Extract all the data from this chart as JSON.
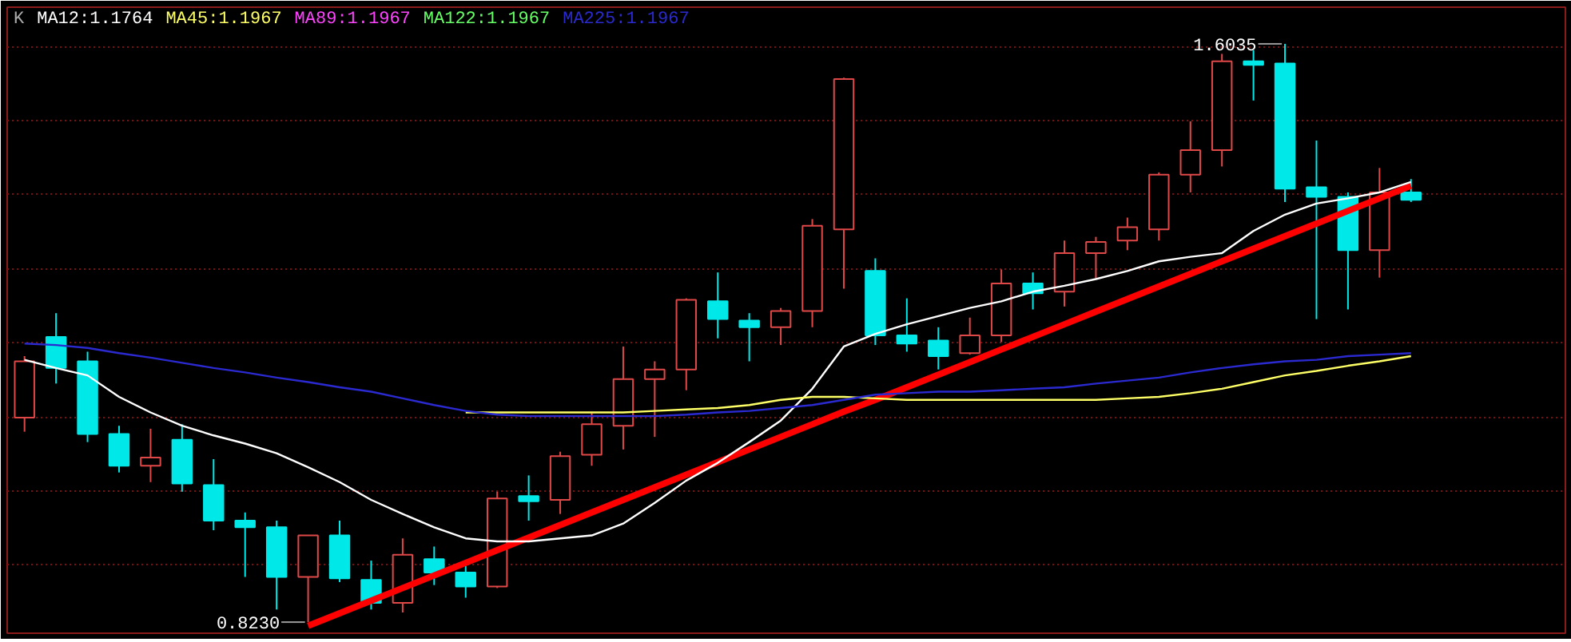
{
  "chart_data": {
    "type": "candlestick",
    "categories": [
      null,
      null,
      null,
      null,
      null,
      null,
      null,
      null,
      null,
      null,
      null,
      null,
      null,
      null,
      null,
      null,
      null,
      null,
      null,
      null,
      null,
      null,
      null,
      null,
      null,
      null,
      null,
      null,
      null,
      null,
      null,
      null,
      null,
      null,
      null,
      null,
      null,
      null,
      null,
      null,
      null,
      null,
      null,
      null,
      null
    ],
    "ohlc": [
      [
        1.099,
        1.182,
        1.08,
        1.175
      ],
      [
        1.208,
        1.24,
        1.145,
        1.166
      ],
      [
        1.175,
        1.188,
        1.066,
        1.077
      ],
      [
        1.077,
        1.088,
        1.025,
        1.034
      ],
      [
        1.034,
        1.084,
        1.012,
        1.045
      ],
      [
        1.069,
        1.09,
        0.999,
        1.01
      ],
      [
        1.008,
        1.043,
        0.947,
        0.96
      ],
      [
        0.96,
        0.971,
        0.884,
        0.951
      ],
      [
        0.951,
        0.96,
        0.84,
        0.884
      ],
      [
        0.884,
        0.94,
        0.823,
        0.94
      ],
      [
        0.94,
        0.96,
        0.877,
        0.882
      ],
      [
        0.88,
        0.906,
        0.84,
        0.849
      ],
      [
        0.849,
        0.936,
        0.836,
        0.914
      ],
      [
        0.908,
        0.925,
        0.873,
        0.89
      ],
      [
        0.89,
        0.899,
        0.856,
        0.871
      ],
      [
        0.871,
        0.999,
        0.869,
        0.99
      ],
      [
        0.993,
        1.021,
        0.96,
        0.986
      ],
      [
        0.988,
        1.053,
        0.969,
        1.047
      ],
      [
        1.049,
        1.106,
        1.034,
        1.09
      ],
      [
        1.088,
        1.195,
        1.056,
        1.151
      ],
      [
        1.151,
        1.175,
        1.073,
        1.164
      ],
      [
        1.164,
        1.26,
        1.136,
        1.258
      ],
      [
        1.256,
        1.295,
        1.206,
        1.232
      ],
      [
        1.23,
        1.24,
        1.175,
        1.221
      ],
      [
        1.221,
        1.247,
        1.197,
        1.243
      ],
      [
        1.243,
        1.367,
        1.221,
        1.358
      ],
      [
        1.353,
        1.558,
        1.273,
        1.556
      ],
      [
        1.297,
        1.314,
        1.197,
        1.21
      ],
      [
        1.21,
        1.26,
        1.188,
        1.199
      ],
      [
        1.203,
        1.221,
        1.164,
        1.182
      ],
      [
        1.186,
        1.234,
        1.184,
        1.21
      ],
      [
        1.21,
        1.299,
        1.201,
        1.28
      ],
      [
        1.28,
        1.295,
        1.245,
        1.267
      ],
      [
        1.269,
        1.338,
        1.249,
        1.321
      ],
      [
        1.321,
        1.343,
        1.286,
        1.336
      ],
      [
        1.338,
        1.369,
        1.325,
        1.356
      ],
      [
        1.353,
        1.43,
        1.338,
        1.427
      ],
      [
        1.427,
        1.499,
        1.403,
        1.46
      ],
      [
        1.46,
        1.59,
        1.438,
        1.58
      ],
      [
        1.58,
        1.595,
        1.527,
        1.575
      ],
      [
        1.577,
        1.6035,
        1.39,
        1.408
      ],
      [
        1.41,
        1.473,
        1.232,
        1.397
      ],
      [
        1.397,
        1.403,
        1.245,
        1.325
      ],
      [
        1.325,
        1.436,
        1.288,
        1.403
      ],
      [
        1.403,
        1.421,
        1.39,
        1.393
      ]
    ],
    "colors": [
      "#e04848",
      "#00e8e8",
      "#00e8e8",
      "#00e8e8",
      "#e04848",
      "#00e8e8",
      "#00e8e8",
      "#00e8e8",
      "#00e8e8",
      "#e04848",
      "#00e8e8",
      "#00e8e8",
      "#e04848",
      "#00e8e8",
      "#00e8e8",
      "#e04848",
      "#00e8e8",
      "#e04848",
      "#e04848",
      "#e04848",
      "#e04848",
      "#e04848",
      "#00e8e8",
      "#00e8e8",
      "#e04848",
      "#e04848",
      "#e04848",
      "#00e8e8",
      "#00e8e8",
      "#00e8e8",
      "#e04848",
      "#e04848",
      "#00e8e8",
      "#e04848",
      "#e04848",
      "#e04848",
      "#e04848",
      "#e04848",
      "#e04848",
      "#00e8e8",
      "#00e8e8",
      "#00e8e8",
      "#00e8e8",
      "#e04848",
      "#00e8e8"
    ],
    "series": [
      {
        "type": "line",
        "name": "MA12:1.1764",
        "color": "#ffffff",
        "values": [
          1.177,
          1.166,
          1.156,
          1.127,
          1.106,
          1.088,
          1.075,
          1.064,
          1.051,
          1.032,
          1.012,
          0.988,
          0.969,
          0.951,
          0.936,
          0.932,
          0.932,
          0.936,
          0.94,
          0.956,
          0.984,
          1.014,
          1.038,
          1.066,
          1.095,
          1.138,
          1.195,
          1.212,
          1.225,
          1.236,
          1.247,
          1.256,
          1.269,
          1.277,
          1.286,
          1.297,
          1.31,
          1.316,
          1.321,
          1.351,
          1.373,
          1.388,
          1.395,
          1.403,
          1.417
        ]
      },
      {
        "type": "line",
        "name": "MA45:1.1967",
        "color": "#ffff66",
        "values": [
          null,
          null,
          null,
          null,
          null,
          null,
          null,
          null,
          null,
          null,
          null,
          null,
          null,
          null,
          1.106,
          1.106,
          1.106,
          1.106,
          1.106,
          1.106,
          1.108,
          1.11,
          1.112,
          1.116,
          1.123,
          1.127,
          1.127,
          1.125,
          1.123,
          1.123,
          1.123,
          1.123,
          1.123,
          1.123,
          1.123,
          1.125,
          1.127,
          1.132,
          1.138,
          1.147,
          1.156,
          1.162,
          1.169,
          1.175,
          1.182
        ]
      },
      {
        "type": "line",
        "name": "MA89:1.1967",
        "color": "#ff44ff",
        "values": [
          null,
          null,
          null,
          null,
          null,
          null,
          null,
          null,
          null,
          null,
          null,
          null,
          null,
          null,
          null,
          null,
          null,
          null,
          null,
          null,
          null,
          null,
          null,
          null,
          null,
          null,
          null,
          null,
          null,
          null,
          null,
          null,
          null,
          null,
          null,
          null,
          null,
          null,
          null,
          null,
          null,
          null,
          null,
          null,
          null
        ]
      },
      {
        "type": "line",
        "name": "MA122:1.1967",
        "color": "#66ff66",
        "values": [
          null,
          null,
          null,
          null,
          null,
          null,
          null,
          null,
          null,
          null,
          null,
          null,
          null,
          null,
          null,
          null,
          null,
          null,
          null,
          null,
          null,
          null,
          null,
          null,
          null,
          null,
          null,
          null,
          null,
          null,
          null,
          null,
          null,
          null,
          null,
          null,
          null,
          null,
          null,
          null,
          null,
          null,
          null,
          null,
          null
        ]
      },
      {
        "type": "line",
        "name": "MA225:1.1967",
        "color": "#2a2ad0",
        "values": [
          1.199,
          1.197,
          1.193,
          1.186,
          1.18,
          1.173,
          1.166,
          1.16,
          1.153,
          1.147,
          1.14,
          1.134,
          1.125,
          1.116,
          1.108,
          1.103,
          1.101,
          1.101,
          1.101,
          1.101,
          1.101,
          1.103,
          1.106,
          1.108,
          1.112,
          1.116,
          1.123,
          1.13,
          1.132,
          1.134,
          1.134,
          1.136,
          1.138,
          1.14,
          1.145,
          1.149,
          1.153,
          1.16,
          1.166,
          1.171,
          1.175,
          1.177,
          1.182,
          1.184,
          1.186
        ]
      },
      {
        "type": "line",
        "color": "#ff0000",
        "values": [
          null,
          null,
          null,
          null,
          null,
          null,
          null,
          null,
          null,
          0.818,
          0.835,
          0.852,
          0.869,
          0.886,
          0.903,
          0.92,
          0.937,
          0.954,
          0.971,
          0.988,
          1.005,
          1.022,
          1.039,
          1.056,
          1.073,
          1.09,
          1.107,
          1.123,
          1.14,
          1.157,
          1.174,
          1.191,
          1.208,
          1.225,
          1.242,
          1.259,
          1.276,
          1.293,
          1.31,
          1.327,
          1.344,
          1.361,
          1.378,
          1.395,
          1.412
        ]
      }
    ],
    "ylim": [
      0.808,
      1.653
    ],
    "yticks": [
      {
        "value": 0.9,
        "label": null
      },
      {
        "value": 1.0,
        "label": null
      },
      {
        "value": 1.1,
        "label": null
      },
      {
        "value": 1.2,
        "label": null
      },
      {
        "value": 1.3,
        "label": null
      },
      {
        "value": 1.4,
        "label": null
      },
      {
        "value": 1.5,
        "label": null
      },
      {
        "value": 1.6,
        "label": null
      }
    ],
    "grid": "y",
    "tick_labels": false,
    "legend": "top left",
    "annotations": [
      "K",
      "1.6035",
      "0.8230"
    ]
  }
}
